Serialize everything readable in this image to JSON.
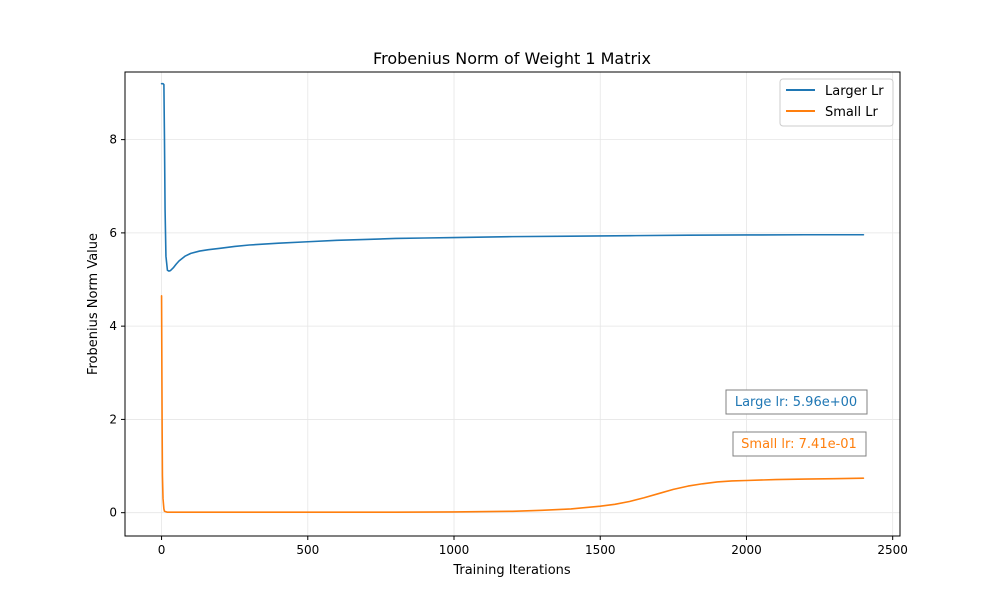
{
  "chart_data": {
    "type": "line",
    "title": "Frobenius Norm of Weight 1 Matrix",
    "xlabel": "Training Iterations",
    "ylabel": "Frobenius Norm Value",
    "xlim": [
      -125,
      2525
    ],
    "ylim": [
      -0.5,
      9.45
    ],
    "xticks": [
      0,
      500,
      1000,
      1500,
      2000,
      2500
    ],
    "yticks": [
      0,
      2,
      4,
      6,
      8
    ],
    "grid": true,
    "legend_position": "top-right",
    "series": [
      {
        "name": "Larger Lr",
        "color": "#1f77b4",
        "x": [
          0,
          5,
          8,
          10,
          12,
          15,
          20,
          25,
          30,
          40,
          50,
          60,
          80,
          100,
          130,
          160,
          200,
          250,
          300,
          400,
          500,
          600,
          700,
          800,
          900,
          1000,
          1200,
          1400,
          1600,
          1800,
          2000,
          2200,
          2400
        ],
        "y": [
          9.2,
          9.2,
          9.18,
          8.0,
          6.5,
          5.5,
          5.2,
          5.18,
          5.19,
          5.25,
          5.33,
          5.4,
          5.5,
          5.56,
          5.61,
          5.64,
          5.67,
          5.71,
          5.74,
          5.78,
          5.81,
          5.84,
          5.86,
          5.88,
          5.89,
          5.9,
          5.92,
          5.93,
          5.94,
          5.95,
          5.955,
          5.96,
          5.96
        ]
      },
      {
        "name": "Small Lr",
        "color": "#ff7f0e",
        "x": [
          0,
          1,
          2,
          3,
          5,
          8,
          10,
          20,
          100,
          400,
          800,
          1000,
          1200,
          1300,
          1400,
          1500,
          1550,
          1600,
          1650,
          1700,
          1750,
          1800,
          1850,
          1900,
          1950,
          2000,
          2100,
          2200,
          2300,
          2400
        ],
        "y": [
          4.65,
          3.2,
          1.8,
          0.8,
          0.3,
          0.08,
          0.03,
          0.01,
          0.01,
          0.01,
          0.01,
          0.015,
          0.03,
          0.05,
          0.08,
          0.14,
          0.18,
          0.24,
          0.32,
          0.41,
          0.5,
          0.57,
          0.62,
          0.66,
          0.68,
          0.69,
          0.71,
          0.72,
          0.73,
          0.74
        ]
      }
    ],
    "annotations": [
      {
        "text": "Large lr: 5.96e+00",
        "color": "#1f77b4"
      },
      {
        "text": "Small lr: 7.41e-01",
        "color": "#ff7f0e"
      }
    ]
  }
}
